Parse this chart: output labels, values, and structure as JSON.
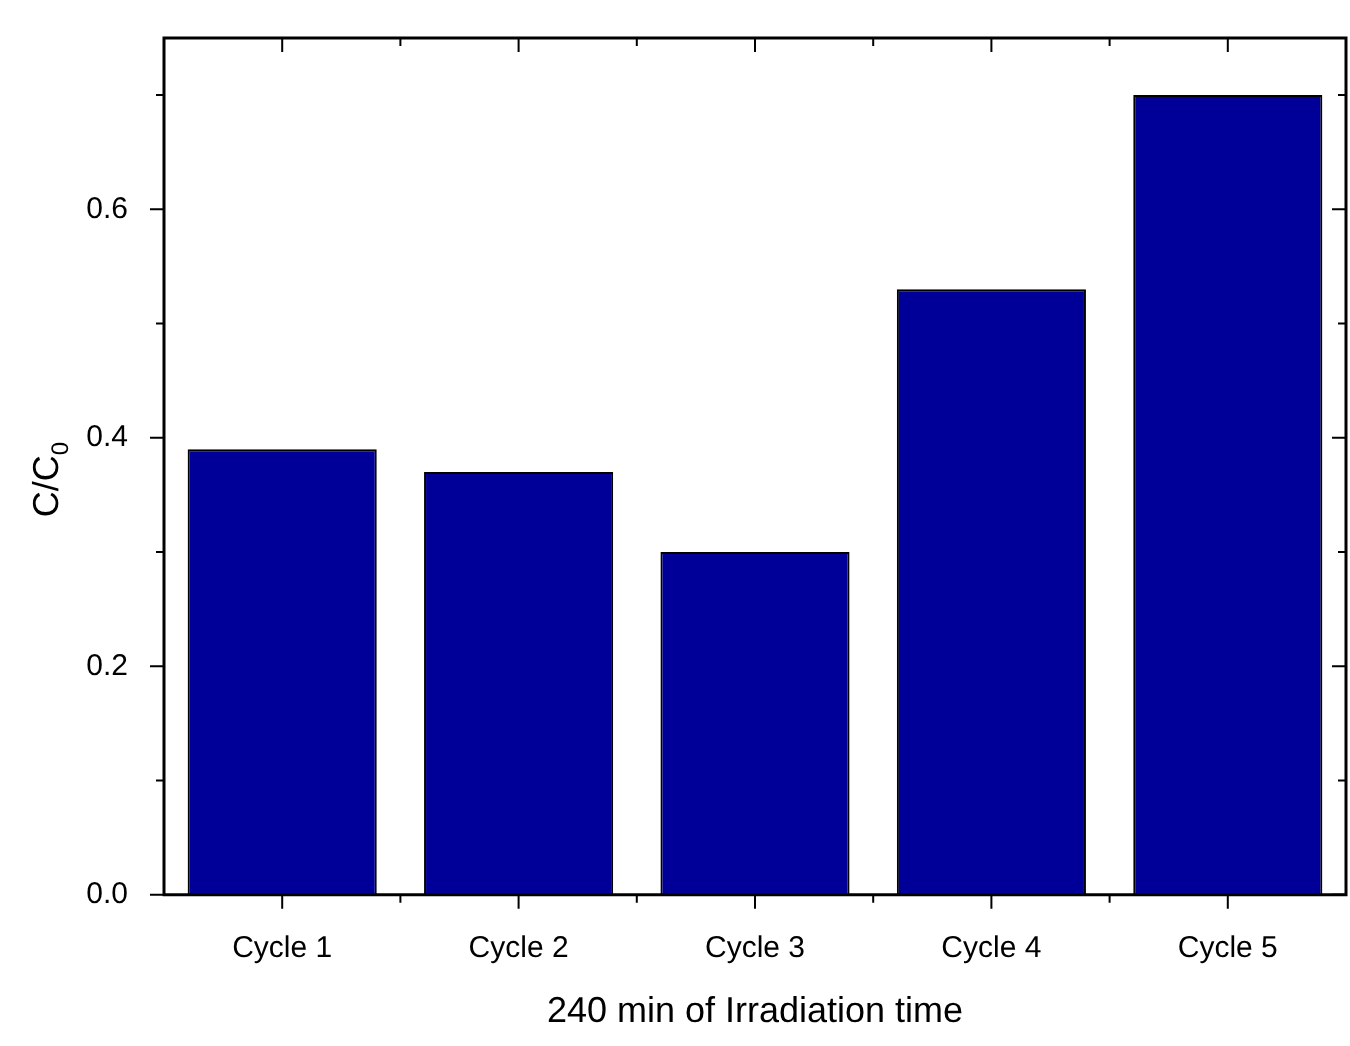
{
  "chart_data": {
    "type": "bar",
    "xlabel": "240 min of Irradiation time",
    "ylabel": "C/C$_{0}$",
    "categories": [
      "Cycle 1",
      "Cycle 2",
      "Cycle 3",
      "Cycle 4",
      "Cycle 5"
    ],
    "values": [
      0.39,
      0.37,
      0.3,
      0.53,
      0.7
    ],
    "color": "#000099",
    "ylim": [
      0,
      0.75
    ],
    "yticks": [
      {
        "value": 0,
        "label": "0.0"
      },
      {
        "value": 0.1,
        "label": null
      },
      {
        "value": 0.2,
        "label": "0.2"
      },
      {
        "value": 0.3,
        "label": null
      },
      {
        "value": 0.4,
        "label": "0.4"
      },
      {
        "value": 0.5,
        "label": null
      },
      {
        "value": 0.6,
        "label": "0.6"
      },
      {
        "value": 0.7,
        "label": null
      }
    ]
  }
}
